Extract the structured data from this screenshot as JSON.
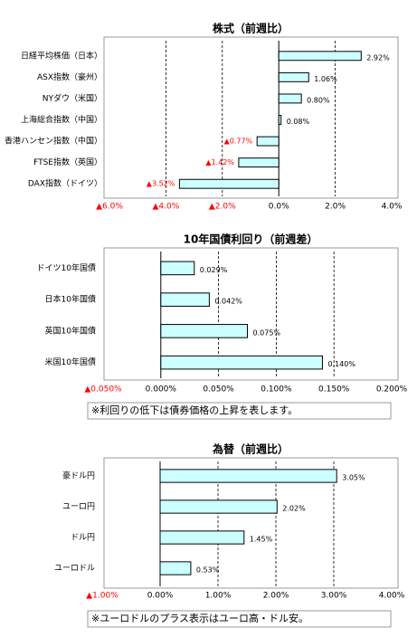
{
  "chart_data": [
    {
      "type": "bar",
      "orientation": "horizontal",
      "title": "株式（前週比）",
      "categories": [
        "日経平均株価（日本）",
        "ASX指数（豪州）",
        "NYダウ（米国）",
        "上海総合指数（中国）",
        "香港ハンセン指数（中国）",
        "FTSE指数（英国）",
        "DAX指数（ドイツ）"
      ],
      "values": [
        2.92,
        1.06,
        0.8,
        0.08,
        -0.77,
        -1.42,
        -3.52
      ],
      "value_labels": [
        "2.92%",
        "1.06%",
        "0.80%",
        "0.08%",
        "▲0.77%",
        "▲1.42%",
        "▲3.52%"
      ],
      "color": "#ccffff",
      "negative_color": "#ff0000",
      "grid": true,
      "xlim": [
        -6,
        4
      ],
      "xticks": [
        {
          "value": -6,
          "label": "▲6.0%"
        },
        {
          "value": -4,
          "label": "▲4.0%"
        },
        {
          "value": -2,
          "label": "▲2.0%"
        },
        {
          "value": 0,
          "label": "0.0%"
        },
        {
          "value": 2,
          "label": "2.0%"
        },
        {
          "value": 4,
          "label": "4.0%"
        }
      ]
    },
    {
      "type": "bar",
      "orientation": "horizontal",
      "title": "10年国債利回り（前週差）",
      "categories": [
        "ドイツ10年国債",
        "日本10年国債",
        "英国10年国債",
        "米国10年国債"
      ],
      "values": [
        0.029,
        0.042,
        0.075,
        0.14
      ],
      "value_labels": [
        "0.029%",
        "0.042%",
        "0.075%",
        "0.140%"
      ],
      "color": "#ccffff",
      "negative_color": "#ff0000",
      "grid": true,
      "xlim": [
        -0.05,
        0.2
      ],
      "xticks": [
        {
          "value": -0.05,
          "label": "▲0.050%"
        },
        {
          "value": 0,
          "label": "0.000%"
        },
        {
          "value": 0.05,
          "label": "0.050%"
        },
        {
          "value": 0.1,
          "label": "0.100%"
        },
        {
          "value": 0.15,
          "label": "0.150%"
        },
        {
          "value": 0.2,
          "label": "0.200%"
        }
      ],
      "note": "※利回りの低下は債券価格の上昇を表します。"
    },
    {
      "type": "bar",
      "orientation": "horizontal",
      "title": "為替（前週比）",
      "categories": [
        "豪ドル円",
        "ユーロ円",
        "ドル円",
        "ユーロドル"
      ],
      "values": [
        3.05,
        2.02,
        1.45,
        0.53
      ],
      "value_labels": [
        "3.05%",
        "2.02%",
        "1.45%",
        "0.53%"
      ],
      "color": "#ccffff",
      "negative_color": "#ff0000",
      "grid": true,
      "xlim": [
        -1,
        4
      ],
      "xticks": [
        {
          "value": -1,
          "label": "▲1.00%"
        },
        {
          "value": 0,
          "label": "0.00%"
        },
        {
          "value": 1,
          "label": "1.00%"
        },
        {
          "value": 2,
          "label": "2.00%"
        },
        {
          "value": 3,
          "label": "3.00%"
        },
        {
          "value": 4,
          "label": "4.00%"
        }
      ],
      "note": "※ユーロドルのプラス表示はユーロ高・ドル安。"
    }
  ]
}
